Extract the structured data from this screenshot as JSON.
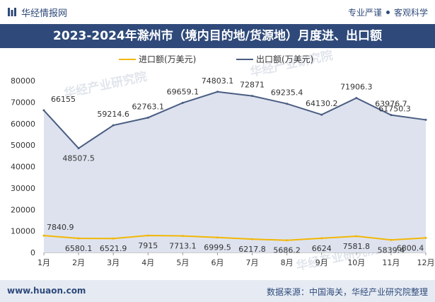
{
  "header": {
    "brand": "华经情报网",
    "tagline_left": "专业严谨",
    "tagline_right": "客观科学"
  },
  "title": "2023-2024年滁州市（境内目的地/货源地）月度进、出口额",
  "watermark": "华经产业研究院",
  "footer": {
    "website": "www.huaon.com",
    "source": "数据来源：中国海关，华经产业研究院整理"
  },
  "colors": {
    "header_band": "#2f4a7a",
    "import_line": "#f2b705",
    "export_line": "#4a5d82",
    "export_area": "#dde2ee"
  },
  "chart_data": {
    "type": "area",
    "categories": [
      "1月",
      "2月",
      "3月",
      "4月",
      "5月",
      "6月",
      "7月",
      "8月",
      "9月",
      "10月",
      "11月",
      "12月"
    ],
    "series": [
      {
        "name": "进口额(万美元)",
        "values": [
          7840.9,
          6580.1,
          6521.9,
          7915,
          7713.1,
          6999.5,
          6217.8,
          5686.2,
          6624,
          7581.8,
          5839.4,
          6800.4
        ]
      },
      {
        "name": "出口额(万美元)",
        "values": [
          66155,
          48507.5,
          59214.6,
          62763.1,
          69659.1,
          74803.1,
          72871,
          69235.4,
          64130.2,
          71906.3,
          63976.7,
          61750.3
        ]
      }
    ],
    "labels": {
      "import": [
        "7840.9",
        "6580.1",
        "6521.9",
        "7915",
        "7713.1",
        "6999.5",
        "6217.8",
        "5686.2",
        "6624",
        "7581.8",
        "5839.4",
        "6800.4"
      ],
      "export": [
        "66155",
        "48507.5",
        "59214.6",
        "62763.1",
        "69659.1",
        "74803.1",
        "72871",
        "69235.4",
        "64130.2",
        "71906.3",
        "63976.7",
        "61750.3"
      ]
    },
    "ylim": [
      0,
      80000
    ],
    "yticks": [
      "0",
      "10000",
      "20000",
      "30000",
      "40000",
      "50000",
      "60000",
      "70000",
      "80000"
    ],
    "legend_position": "top-center",
    "grid": false
  }
}
